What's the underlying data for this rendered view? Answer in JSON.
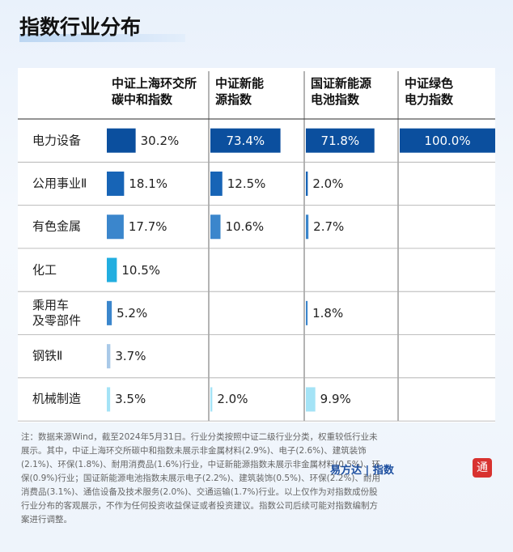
{
  "header": {
    "title": "指数行业分布"
  },
  "chart_data": {
    "type": "bar",
    "orientation": "horizontal",
    "categories": [
      "电力设备",
      "公用事业Ⅱ",
      "有色金属",
      "化工",
      "乘用车\n及零部件",
      "钢铁Ⅱ",
      "机械制造"
    ],
    "row_colors": [
      "#0b4f9e",
      "#1764b6",
      "#3b86cc",
      "#22aee0",
      "#3b86cc",
      "#a9c9e8",
      "#a4e3f6"
    ],
    "xlim": [
      0,
      100
    ],
    "series": [
      {
        "name": "中证上海环交所\n碳中和指数",
        "values": [
          30.2,
          18.1,
          17.7,
          10.5,
          5.2,
          3.7,
          3.5
        ],
        "value_labels": [
          "30.2%",
          "18.1%",
          "17.7%",
          "10.5%",
          "5.2%",
          "3.7%",
          "3.5%"
        ]
      },
      {
        "name": "中证新能\n源指数",
        "values": [
          73.4,
          12.5,
          10.6,
          null,
          null,
          null,
          2.0
        ],
        "value_labels": [
          "73.4%",
          "12.5%",
          "10.6%",
          null,
          null,
          null,
          "2.0%"
        ]
      },
      {
        "name": "国证新能源\n电池指数",
        "values": [
          71.8,
          2.0,
          2.7,
          null,
          1.8,
          null,
          9.9
        ],
        "value_labels": [
          "71.8%",
          "2.0%",
          "2.7%",
          null,
          "1.8%",
          null,
          "9.9%"
        ]
      },
      {
        "name": "中证绿色\n电力指数",
        "values": [
          100.0,
          null,
          null,
          null,
          null,
          null,
          null
        ],
        "value_labels": [
          "100.0%",
          null,
          null,
          null,
          null,
          null,
          null
        ]
      }
    ]
  },
  "footnote": "注：数据来源Wind，截至2024年5月31日。行业分类按照中证二级行业分类，权重较低行业未展示。其中，中证上海环交所碳中和指数未展示非金属材料(2.9%)、电子(2.6%)、建筑装饰(2.1%)、环保(1.8%)、耐用消费品(1.6%)行业，中证新能源指数未展示非金属材料(0.5%)、环保(0.9%)行业；国证新能源电池指数未展示电子(2.2%)、建筑装饰(0.5%)、环保(2.2%)、耐用消费品(3.1%)、通信设备及技术服务(2.0%)、交通运输(1.7%)行业。以上仅作为对指数成份股行业分布的客观展示，不作为任何投资收益保证或者投资建议。指数公司后续可能对指数编制方案进行调整。",
  "logo": {
    "brand": "易方达",
    "product": "指数",
    "seal": "通"
  }
}
